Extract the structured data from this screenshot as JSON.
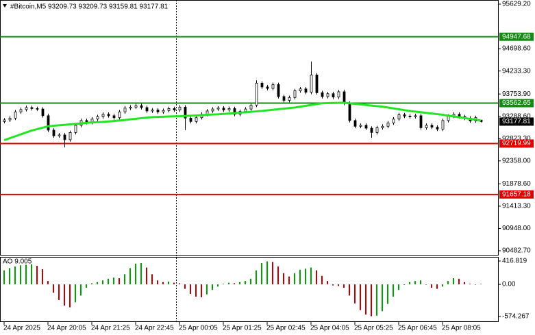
{
  "chart_data": [
    {
      "type": "candlestick",
      "title": "#Bitcoin,M5  93209.73 93209.73 93159.81 93177.81",
      "open": [
        93180,
        93213,
        93250,
        93380,
        93430,
        93470,
        93450,
        93440,
        93300,
        93000,
        92880,
        92900,
        92800,
        92950,
        93100,
        93200,
        93160,
        93230,
        93280,
        93330,
        93300,
        93260,
        93380,
        93460,
        93480,
        93510,
        93470,
        93400,
        93420,
        93380,
        93410,
        93450,
        93420,
        93480,
        93250,
        93180,
        93260,
        93330,
        93400,
        93440,
        93460,
        93420,
        93450,
        93330,
        93390,
        93440,
        93520,
        93980,
        93900,
        93870,
        93950,
        93700,
        93620,
        93680,
        93820,
        93860,
        93790,
        94150,
        93780,
        93700,
        93760,
        93690,
        93800,
        93560,
        93200,
        93080,
        93100,
        93040,
        92950,
        93050,
        93080,
        93150,
        93230,
        93320,
        93290,
        93280,
        93300,
        93050,
        93100,
        93060,
        93020,
        93200,
        93290,
        93330,
        93280,
        93250,
        93190,
        93209.73
      ],
      "high": [
        93250,
        93290,
        93420,
        93470,
        93510,
        93510,
        93490,
        93480,
        93340,
        93040,
        92940,
        92940,
        92990,
        93140,
        93240,
        93240,
        93270,
        93320,
        93370,
        93370,
        93340,
        93420,
        93500,
        93520,
        93550,
        93550,
        93510,
        93460,
        93460,
        93450,
        93490,
        93490,
        93520,
        93520,
        93290,
        93300,
        93370,
        93440,
        93480,
        93500,
        93500,
        93490,
        93490,
        93430,
        93480,
        93560,
        94040,
        94020,
        93940,
        93990,
        93990,
        93740,
        93720,
        93860,
        93900,
        93900,
        94430,
        94190,
        93820,
        93800,
        93800,
        93840,
        93840,
        93600,
        93240,
        93140,
        93140,
        93080,
        93090,
        93120,
        93190,
        93270,
        93360,
        93360,
        93330,
        93340,
        93340,
        93140,
        93140,
        93100,
        93240,
        93330,
        93370,
        93370,
        93320,
        93290,
        93300,
        93209.73
      ],
      "low": [
        93140,
        93170,
        93210,
        93340,
        93390,
        93410,
        93400,
        93260,
        92960,
        92840,
        92840,
        92640,
        92760,
        92910,
        93060,
        93120,
        93120,
        93190,
        93240,
        93260,
        93220,
        93220,
        93340,
        93420,
        93440,
        93430,
        93360,
        93360,
        93340,
        93340,
        93370,
        93380,
        93380,
        93000,
        93140,
        93140,
        93220,
        93290,
        93360,
        93400,
        93380,
        93380,
        93290,
        93290,
        93350,
        93400,
        93480,
        93860,
        93830,
        93830,
        93660,
        93580,
        93580,
        93640,
        93780,
        93750,
        93750,
        93740,
        93660,
        93660,
        93650,
        93650,
        93520,
        93160,
        93040,
        93040,
        93000,
        92840,
        92910,
        93010,
        93040,
        93110,
        93190,
        93250,
        93240,
        93240,
        93010,
        93010,
        93020,
        92980,
        92980,
        93160,
        93250,
        93240,
        93210,
        93150,
        93150,
        93159.81
      ],
      "close": [
        93213,
        93250,
        93380,
        93430,
        93470,
        93450,
        93440,
        93300,
        93000,
        92880,
        92900,
        92800,
        92950,
        93100,
        93200,
        93160,
        93230,
        93280,
        93330,
        93300,
        93260,
        93380,
        93460,
        93480,
        93510,
        93470,
        93400,
        93420,
        93380,
        93410,
        93450,
        93420,
        93480,
        93250,
        93180,
        93260,
        93330,
        93400,
        93440,
        93460,
        93420,
        93450,
        93330,
        93390,
        93440,
        93520,
        93980,
        93900,
        93870,
        93950,
        93700,
        93620,
        93680,
        93820,
        93860,
        93790,
        94150,
        93780,
        93700,
        93760,
        93690,
        93800,
        93560,
        93200,
        93080,
        93100,
        93040,
        92950,
        93050,
        93080,
        93150,
        93230,
        93320,
        93290,
        93280,
        93300,
        93050,
        93100,
        93060,
        93020,
        93200,
        93290,
        93330,
        93280,
        93250,
        93190,
        93260,
        93177.81
      ],
      "up_color": "#ffffff",
      "down_color": "#000000",
      "ma": {
        "color": "#22e622",
        "values": [
          92790,
          92830,
          92870,
          92910,
          92950,
          92990,
          93020,
          93050,
          93080,
          93090,
          93100,
          93110,
          93120,
          93130,
          93140,
          93150,
          93160,
          93165,
          93170,
          93180,
          93190,
          93200,
          93210,
          93225,
          93235,
          93250,
          93260,
          93270,
          93275,
          93280,
          93285,
          93288,
          93290,
          93295,
          93300,
          93305,
          93312,
          93318,
          93325,
          93330,
          93338,
          93346,
          93355,
          93364,
          93373,
          93382,
          93391,
          93400,
          93412,
          93424,
          93436,
          93448,
          93460,
          93470,
          93488,
          93506,
          93524,
          93542,
          93560,
          93563,
          93566,
          93568,
          93570,
          93560,
          93548,
          93536,
          93524,
          93512,
          93500,
          93490,
          93472,
          93454,
          93436,
          93418,
          93400,
          93387,
          93374,
          93360,
          93347,
          93334,
          93320,
          93303,
          93286,
          93269,
          93252,
          93235,
          93218,
          93200
        ]
      },
      "levels": [
        {
          "value": 94947.68,
          "color": "#138a13"
        },
        {
          "value": 93562.65,
          "color": "#138a13"
        },
        {
          "value": 92719.99,
          "color": "#e00000"
        },
        {
          "value": 91657.18,
          "color": "#e00000"
        }
      ],
      "last_price_color": "#000000",
      "xlim": [
        -0.75,
        90.125
      ],
      "xticks": [
        {
          "value": 0,
          "label": "24 Apr 2025"
        },
        {
          "value": 8,
          "label": "24 Apr 20:05"
        },
        {
          "value": 16,
          "label": "24 Apr 21:25"
        },
        {
          "value": 24,
          "label": "24 Apr 22:45"
        },
        {
          "value": 32,
          "label": "25 Apr 00:05"
        },
        {
          "value": 40,
          "label": "25 Apr 01:25"
        },
        {
          "value": 48,
          "label": "25 Apr 02:45"
        },
        {
          "value": 56,
          "label": "25 Apr 04:05"
        },
        {
          "value": 64,
          "label": "25 Apr 05:25"
        },
        {
          "value": 72,
          "label": "25 Apr 06:45"
        },
        {
          "value": 80,
          "label": "25 Apr 08:05"
        }
      ],
      "ylim": [
        90397,
        95715
      ],
      "yticks": [
        {
          "value": 95629.2,
          "label": "95629.20"
        },
        {
          "value": 94698.6,
          "label": "94698.60"
        },
        {
          "value": 94233.3,
          "label": "94233.30"
        },
        {
          "value": 93753.9,
          "label": "93753.90"
        },
        {
          "value": 93288.6,
          "label": "93288.60"
        },
        {
          "value": 92823.3,
          "label": "92823.30"
        },
        {
          "value": 92358,
          "label": "92358.00"
        },
        {
          "value": 91878.6,
          "label": "91878.60"
        },
        {
          "value": 91413.3,
          "label": "91413.30"
        },
        {
          "value": 90948,
          "label": "90948.00"
        },
        {
          "value": 90482.7,
          "label": "90482.70"
        }
      ]
    },
    {
      "type": "ao",
      "title": "AO 9.005",
      "values": [
        250,
        290,
        320,
        340,
        350,
        360,
        330,
        270,
        60,
        -150,
        -280,
        -380,
        -410,
        -320,
        -200,
        -60,
        20,
        40,
        70,
        100,
        120,
        110,
        180,
        290,
        370,
        380,
        300,
        180,
        70,
        40,
        50,
        30,
        20,
        -80,
        -170,
        -220,
        -230,
        -180,
        -100,
        -40,
        10,
        30,
        20,
        40,
        60,
        100,
        250,
        380,
        410,
        400,
        320,
        200,
        140,
        200,
        260,
        280,
        300,
        250,
        150,
        60,
        -20,
        -30,
        -60,
        -200,
        -340,
        -460,
        -540,
        -570,
        -560,
        -480,
        -350,
        -220,
        -100,
        -10,
        40,
        60,
        70,
        0,
        -60,
        -80,
        -40,
        60,
        110,
        100,
        40,
        10,
        0,
        9.005
      ],
      "up_color": "#00a000",
      "down_color": "#c00000",
      "ylim": [
        -672,
        490
      ],
      "yticks": [
        416.819,
        {
          "value": 0,
          "label": "0.00"
        },
        -574.267
      ]
    }
  ]
}
